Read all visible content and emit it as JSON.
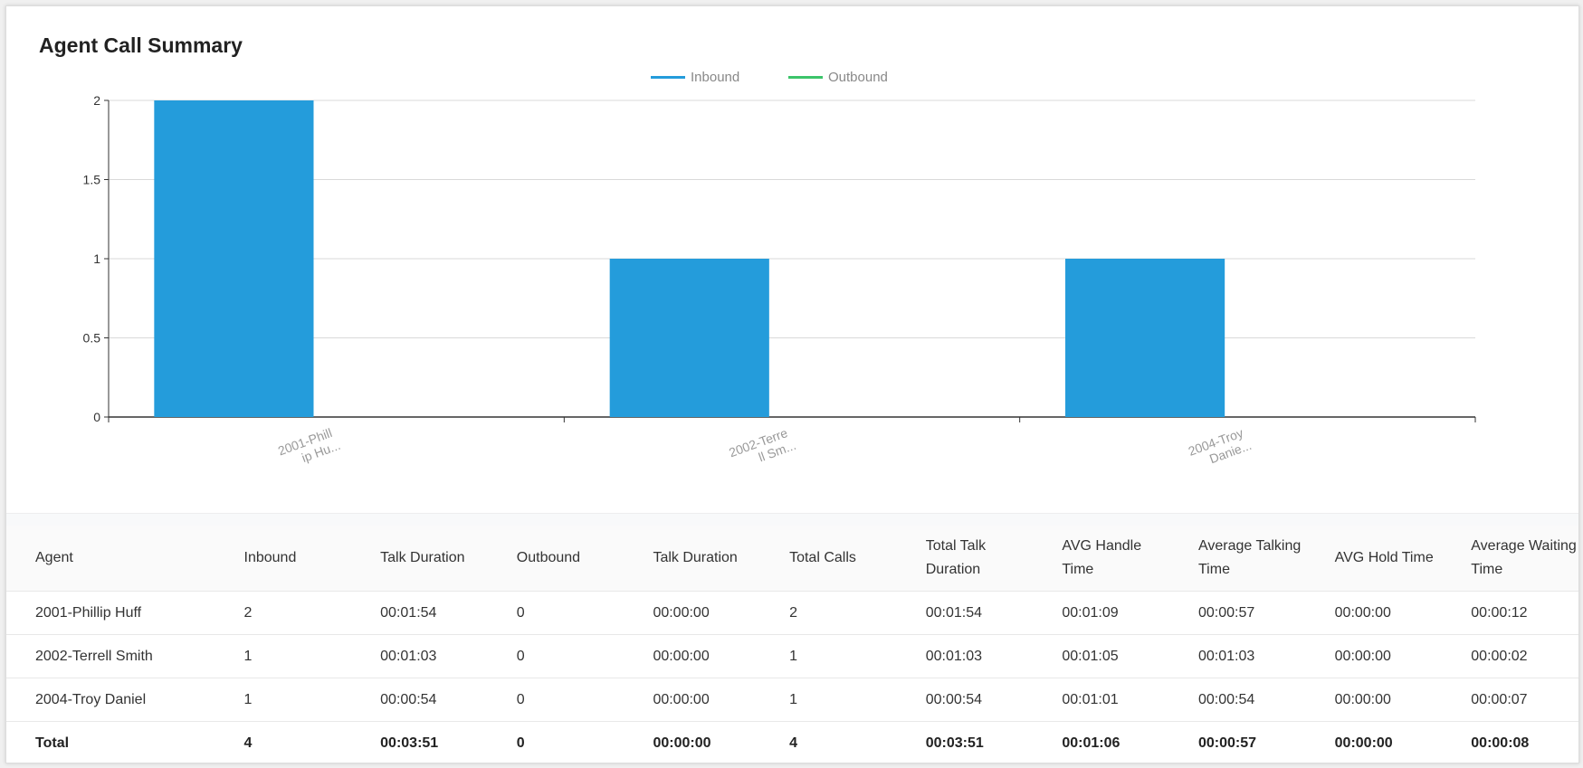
{
  "title": "Agent Call Summary",
  "colors": {
    "inbound": "#249cdb",
    "outbound": "#3cc46a"
  },
  "chart_data": {
    "type": "bar",
    "categories": [
      "2001-Phillip Huff",
      "2002-Terrell Smith",
      "2004-Troy Daniel"
    ],
    "category_labels": [
      [
        "2001-Phill",
        "ip Hu..."
      ],
      [
        "2002-Terre",
        "ll Sm..."
      ],
      [
        "2004-Troy",
        "Danie..."
      ]
    ],
    "series": [
      {
        "name": "Inbound",
        "values": [
          2,
          1,
          1
        ]
      },
      {
        "name": "Outbound",
        "values": [
          0,
          0,
          0
        ]
      }
    ],
    "ylim": [
      0,
      2
    ],
    "yticks": [
      "0",
      "0.5",
      "1",
      "1.5",
      "2"
    ],
    "grid": true,
    "legend": "top-center"
  },
  "table": {
    "headers": [
      "Agent",
      "Inbound",
      "Talk Duration",
      "Outbound",
      "Talk Duration",
      "Total Calls",
      "Total Talk Duration",
      "AVG Handle Time",
      "Average Talking Time",
      "AVG Hold Time",
      "Average Waiting Time"
    ],
    "rows": [
      [
        "2001-Phillip Huff",
        "2",
        "00:01:54",
        "0",
        "00:00:00",
        "2",
        "00:01:54",
        "00:01:09",
        "00:00:57",
        "00:00:00",
        "00:00:12"
      ],
      [
        "2002-Terrell Smith",
        "1",
        "00:01:03",
        "0",
        "00:00:00",
        "1",
        "00:01:03",
        "00:01:05",
        "00:01:03",
        "00:00:00",
        "00:00:02"
      ],
      [
        "2004-Troy Daniel",
        "1",
        "00:00:54",
        "0",
        "00:00:00",
        "1",
        "00:00:54",
        "00:01:01",
        "00:00:54",
        "00:00:00",
        "00:00:07"
      ]
    ],
    "total": [
      "Total",
      "4",
      "00:03:51",
      "0",
      "00:00:00",
      "4",
      "00:03:51",
      "00:01:06",
      "00:00:57",
      "00:00:00",
      "00:00:08"
    ]
  }
}
